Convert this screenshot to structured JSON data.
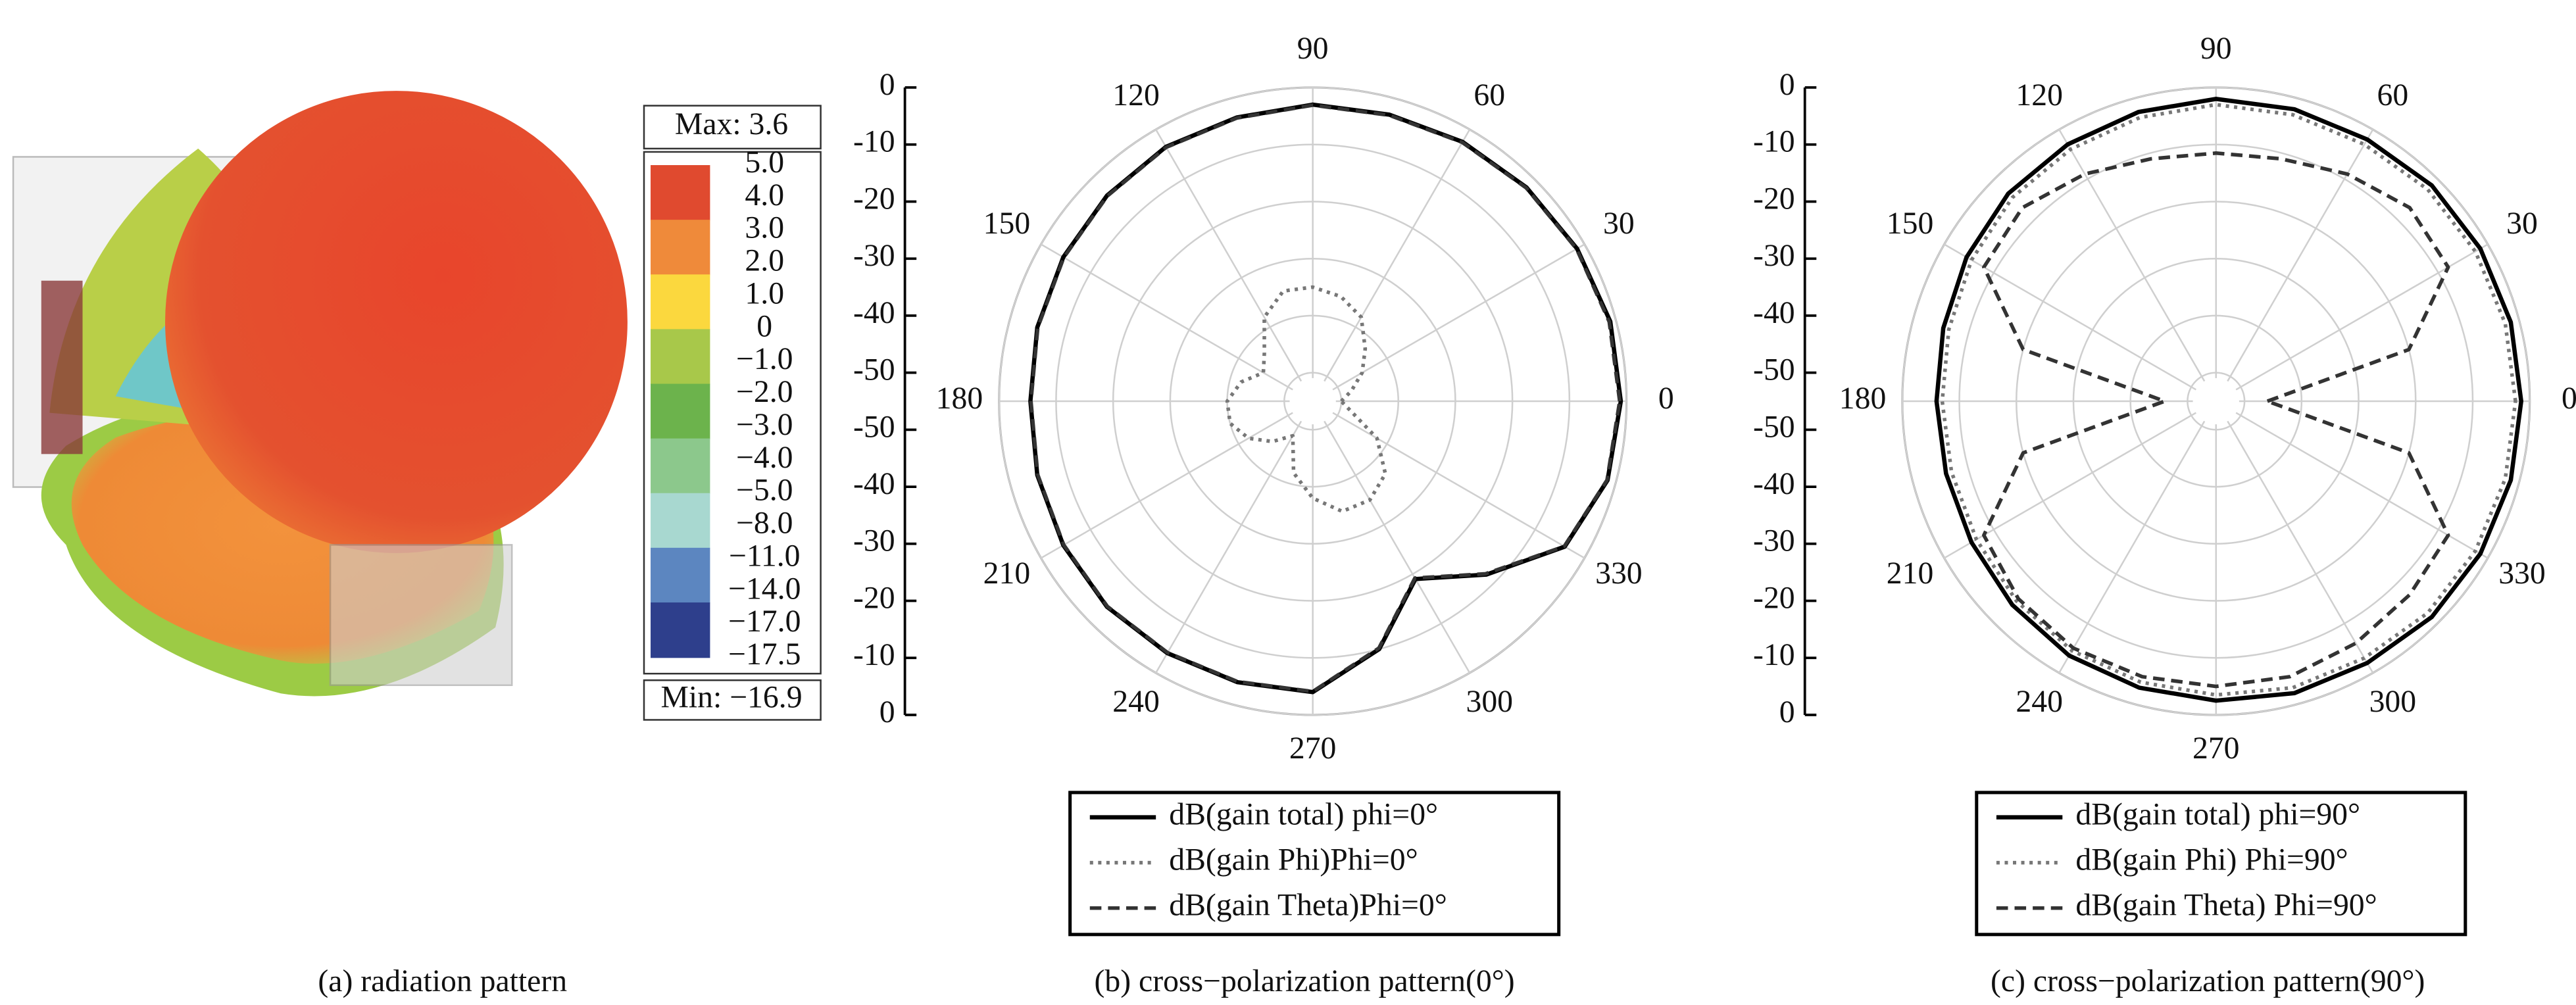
{
  "chart_data": [
    {
      "type": "colorbar",
      "max_label": "Max: 3.6",
      "min_label": "Min: −16.9",
      "labels": [
        "5.0",
        "4.0",
        "3.0",
        "2.0",
        "1.0",
        "0",
        "−1.0",
        "−2.0",
        "−3.0",
        "−4.0",
        "−5.0",
        "−8.0",
        "−11.0",
        "−14.0",
        "−17.0",
        "−17.5"
      ],
      "colors": [
        "#e04a2f",
        "#ef8a3a",
        "#fbd83e",
        "#a8c84a",
        "#6cb34c",
        "#8cc88c",
        "#a8d8d0",
        "#5c86c0",
        "#2e3f8c"
      ],
      "caption": "(a)  radiation pattern"
    },
    {
      "type": "polar",
      "x": [
        0,
        15,
        30,
        45,
        60,
        75,
        90,
        105,
        120,
        135,
        150,
        165,
        180,
        195,
        210,
        225,
        240,
        255,
        270,
        285,
        300,
        315,
        330,
        345
      ],
      "rlim": [
        -55,
        0
      ],
      "rticks": [
        0,
        -10,
        -20,
        -30,
        -40,
        -50
      ],
      "theta_ticks": [
        0,
        30,
        60,
        90,
        120,
        150,
        180,
        210,
        240,
        270,
        300,
        330
      ],
      "series": [
        {
          "name": "dB(gain total) phi=0°",
          "color": "#000000",
          "style": "solid",
          "values": [
            -1,
            -1,
            -1.5,
            -2,
            -2.5,
            -3,
            -3,
            -3.5,
            -3.5,
            -4,
            -4.5,
            -5,
            -5.5,
            -5,
            -4.5,
            -4,
            -4,
            -4,
            -4,
            -10,
            -19,
            -12,
            -4,
            -1.5
          ]
        },
        {
          "name": "dB(gain Phi)Phi=0°",
          "color": "#777777",
          "style": "dotted",
          "values": [
            -50,
            -48,
            -45,
            -42,
            -38,
            -36,
            -35,
            -35,
            -38,
            -43,
            -45,
            -42,
            -40,
            -40,
            -42,
            -45,
            -48,
            -42,
            -38,
            -35,
            -35,
            -37,
            -42,
            -48
          ]
        },
        {
          "name": "dB(gain Theta)Phi=0°",
          "color": "#333333",
          "style": "dashed",
          "values": [
            -1.2,
            -1.2,
            -1.6,
            -2.1,
            -2.6,
            -3.1,
            -3.1,
            -3.6,
            -3.6,
            -4.1,
            -4.6,
            -5.1,
            -5.6,
            -5.1,
            -4.6,
            -4.1,
            -4.1,
            -4.1,
            -4.1,
            -10.2,
            -19.2,
            -12.2,
            -4.1,
            -1.6
          ]
        }
      ],
      "caption": "(b)  cross−polarization pattern(0°)"
    },
    {
      "type": "polar",
      "x": [
        0,
        15,
        30,
        45,
        60,
        75,
        90,
        105,
        120,
        135,
        150,
        165,
        180,
        195,
        210,
        225,
        240,
        255,
        270,
        285,
        300,
        315,
        330,
        345
      ],
      "rlim": [
        -55,
        0
      ],
      "rticks": [
        0,
        -10,
        -20,
        -30,
        -40,
        -50
      ],
      "theta_ticks": [
        0,
        30,
        60,
        90,
        120,
        150,
        180,
        210,
        240,
        270,
        300,
        330
      ],
      "series": [
        {
          "name": "dB(gain total) phi=90°",
          "color": "#000000",
          "style": "solid",
          "values": [
            -1.5,
            -1.5,
            -1.5,
            -1.5,
            -2,
            -2,
            -2,
            -2.5,
            -3,
            -3.5,
            -4.5,
            -5.5,
            -6,
            -6,
            -5.5,
            -4.5,
            -3.5,
            -3,
            -2.5,
            -2,
            -2,
            -1.5,
            -1.5,
            -1.5
          ]
        },
        {
          "name": "dB(gain Phi) Phi=90°",
          "color": "#777777",
          "style": "dotted",
          "values": [
            -2.5,
            -2.5,
            -2.5,
            -2.5,
            -3,
            -3,
            -3,
            -3.5,
            -4,
            -4.5,
            -5.5,
            -6.5,
            -7,
            -7,
            -6.5,
            -5.5,
            -4.5,
            -4,
            -3.5,
            -3,
            -3,
            -2.5,
            -2.5,
            -2.5
          ]
        },
        {
          "name": "dB(gain Theta) Phi=90°",
          "color": "#333333",
          "style": "dashed",
          "values": [
            -46,
            -20,
            -8,
            -7,
            -9,
            -11,
            -11.5,
            -11,
            -9,
            -7,
            -8,
            -20,
            -46,
            -20,
            -8,
            -6,
            -5,
            -5,
            -5,
            -5,
            -6,
            -7,
            -8,
            -20
          ]
        }
      ],
      "caption": "(c) cross−polarization pattern(90°)"
    }
  ]
}
